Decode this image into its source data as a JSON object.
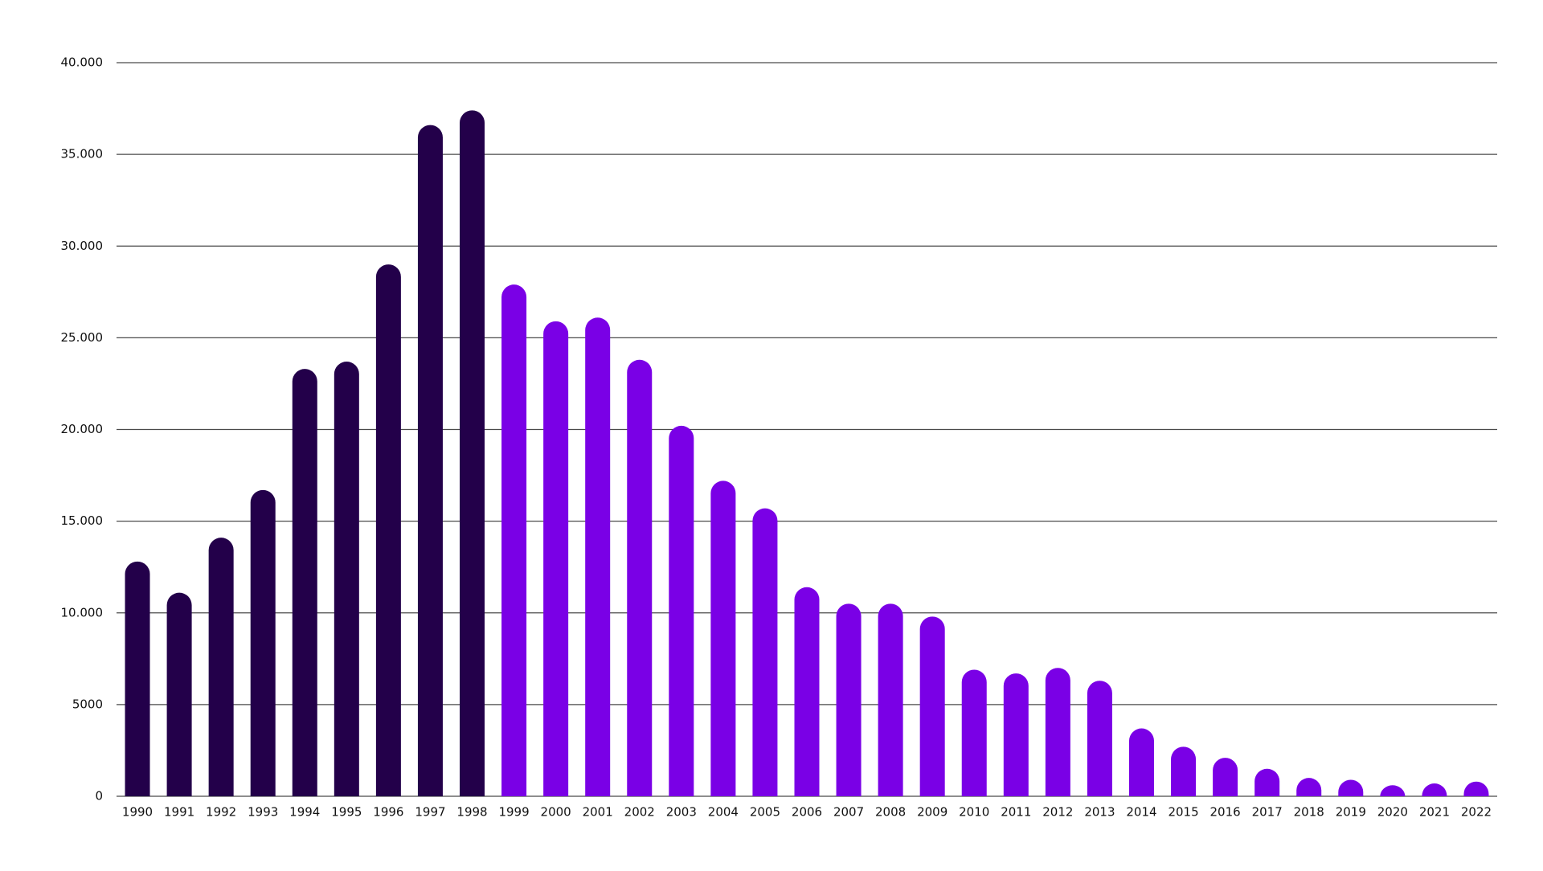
{
  "chart_data": {
    "type": "bar",
    "categories": [
      "1990",
      "1991",
      "1992",
      "1993",
      "1994",
      "1995",
      "1996",
      "1997",
      "1998",
      "1999",
      "2000",
      "2001",
      "2002",
      "2003",
      "2004",
      "2005",
      "2006",
      "2007",
      "2008",
      "2009",
      "2010",
      "2011",
      "2012",
      "2013",
      "2014",
      "2015",
      "2016",
      "2017",
      "2018",
      "2019",
      "2020",
      "2021",
      "2022"
    ],
    "values": [
      12800,
      11100,
      14100,
      16700,
      23300,
      23700,
      29000,
      36600,
      37400,
      27900,
      25900,
      26100,
      23800,
      20200,
      17200,
      15700,
      11400,
      10500,
      10500,
      9800,
      6900,
      6700,
      7000,
      6300,
      3700,
      2700,
      2100,
      1500,
      1000,
      900,
      600,
      700,
      800
    ],
    "colors": [
      "#23004a",
      "#23004a",
      "#23004a",
      "#23004a",
      "#23004a",
      "#23004a",
      "#23004a",
      "#23004a",
      "#23004a",
      "#7a00e6",
      "#7a00e6",
      "#7a00e6",
      "#7a00e6",
      "#7a00e6",
      "#7a00e6",
      "#7a00e6",
      "#7a00e6",
      "#7a00e6",
      "#7a00e6",
      "#7a00e6",
      "#7a00e6",
      "#7a00e6",
      "#7a00e6",
      "#7a00e6",
      "#7a00e6",
      "#7a00e6",
      "#7a00e6",
      "#7a00e6",
      "#7a00e6",
      "#7a00e6",
      "#7a00e6",
      "#7a00e6",
      "#7a00e6"
    ],
    "ylim": [
      0,
      40000
    ],
    "yticks": [
      0,
      5000,
      {
        "value": 10000,
        "label": "10.000"
      },
      {
        "value": 15000,
        "label": "15.000"
      },
      {
        "value": 20000,
        "label": "20.000"
      },
      {
        "value": 25000,
        "label": "25.000"
      },
      {
        "value": 30000,
        "label": "30.000"
      },
      {
        "value": 35000,
        "label": "35.000"
      },
      {
        "value": 40000,
        "label": "40.000"
      }
    ],
    "grid": true
  }
}
